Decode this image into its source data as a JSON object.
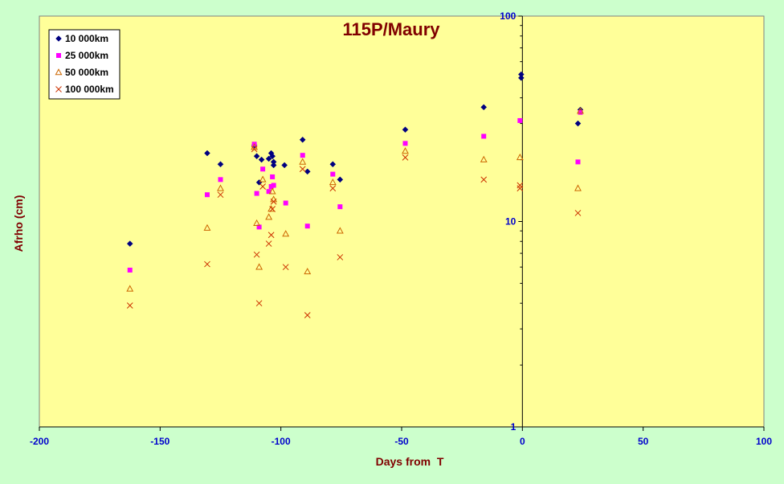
{
  "chart_data": {
    "type": "scatter",
    "title": "115P/Maury",
    "xlabel": "Days from  T",
    "ylabel": "Afrho (cm)",
    "xlim": [
      -200,
      100
    ],
    "ylim": [
      1,
      100
    ],
    "y_scale": "log",
    "x_ticks": [
      -200,
      -150,
      -100,
      -50,
      0,
      50,
      100
    ],
    "y_ticks": [
      1,
      10,
      100
    ],
    "y_axis_position": "x=0",
    "grid": false,
    "legend_position": "top-left",
    "colors": {
      "plot_bg": "#ffff99",
      "outer_bg": "#ccffcc",
      "title": "#800000",
      "tick": "#0000cc"
    },
    "series": [
      {
        "name": "10 000km",
        "marker": "diamond",
        "color": "#000080",
        "points": [
          [
            -162.5,
            7.8
          ],
          [
            -130.5,
            21.5
          ],
          [
            -125,
            19
          ],
          [
            -111,
            23.5
          ],
          [
            -110,
            20.8
          ],
          [
            -108,
            20
          ],
          [
            -105,
            20.2
          ],
          [
            -104,
            21.5
          ],
          [
            -103.5,
            20.8
          ],
          [
            -103,
            19.5
          ],
          [
            -103,
            18.8
          ],
          [
            -98.5,
            18.8
          ],
          [
            -91,
            25
          ],
          [
            -89,
            17.5
          ],
          [
            -78.5,
            19
          ],
          [
            -75.5,
            16
          ],
          [
            -109,
            15.5
          ],
          [
            -48.5,
            28
          ],
          [
            -16,
            36
          ],
          [
            -0.5,
            50
          ],
          [
            -0.5,
            52
          ],
          [
            23,
            30
          ],
          [
            24,
            35
          ]
        ]
      },
      {
        "name": "25 000km",
        "marker": "square",
        "color": "#ff00ff",
        "points": [
          [
            -162.5,
            5.8
          ],
          [
            -130.5,
            13.5
          ],
          [
            -125,
            16
          ],
          [
            -111,
            23.8
          ],
          [
            -110,
            13.7
          ],
          [
            -109,
            9.4
          ],
          [
            -107.5,
            18
          ],
          [
            -105,
            14
          ],
          [
            -104,
            14.8
          ],
          [
            -103.5,
            16.5
          ],
          [
            -103,
            15
          ],
          [
            -98,
            12.3
          ],
          [
            -91,
            21
          ],
          [
            -89,
            9.5
          ],
          [
            -78.5,
            17
          ],
          [
            -75.5,
            11.8
          ],
          [
            -48.5,
            24
          ],
          [
            -16,
            26
          ],
          [
            -1,
            31
          ],
          [
            23,
            19.5
          ],
          [
            24,
            34
          ]
        ]
      },
      {
        "name": "50 000km",
        "marker": "triangle",
        "color": "#cc6600",
        "points": [
          [
            -162.5,
            4.7
          ],
          [
            -130.5,
            9.3
          ],
          [
            -125,
            14.5
          ],
          [
            -111,
            23
          ],
          [
            -110,
            9.8
          ],
          [
            -109,
            6
          ],
          [
            -107.5,
            16
          ],
          [
            -105,
            10.5
          ],
          [
            -104,
            11.5
          ],
          [
            -103.5,
            14
          ],
          [
            -103,
            12.8
          ],
          [
            -98,
            8.7
          ],
          [
            -91,
            19.5
          ],
          [
            -89,
            5.7
          ],
          [
            -78.5,
            15.5
          ],
          [
            -75.5,
            9
          ],
          [
            -48.5,
            22
          ],
          [
            -16,
            20
          ],
          [
            -1,
            20.5
          ],
          [
            23,
            14.5
          ],
          [
            24,
            34.5
          ]
        ]
      },
      {
        "name": "100 000km",
        "marker": "x",
        "color": "#cc3300",
        "points": [
          [
            -162.5,
            3.9
          ],
          [
            -130.5,
            6.2
          ],
          [
            -125,
            13.5
          ],
          [
            -111,
            22.5
          ],
          [
            -110,
            6.9
          ],
          [
            -109,
            4
          ],
          [
            -107.5,
            14.8
          ],
          [
            -105,
            7.8
          ],
          [
            -104,
            8.6
          ],
          [
            -103.5,
            11.5
          ],
          [
            -103,
            12.5
          ],
          [
            -98,
            6
          ],
          [
            -91,
            18
          ],
          [
            -89,
            3.5
          ],
          [
            -78.5,
            14.5
          ],
          [
            -75.5,
            6.7
          ],
          [
            -48.5,
            20.5
          ],
          [
            -16,
            16
          ],
          [
            -1,
            14.5
          ],
          [
            -1,
            15
          ],
          [
            23,
            11
          ]
        ]
      }
    ]
  }
}
